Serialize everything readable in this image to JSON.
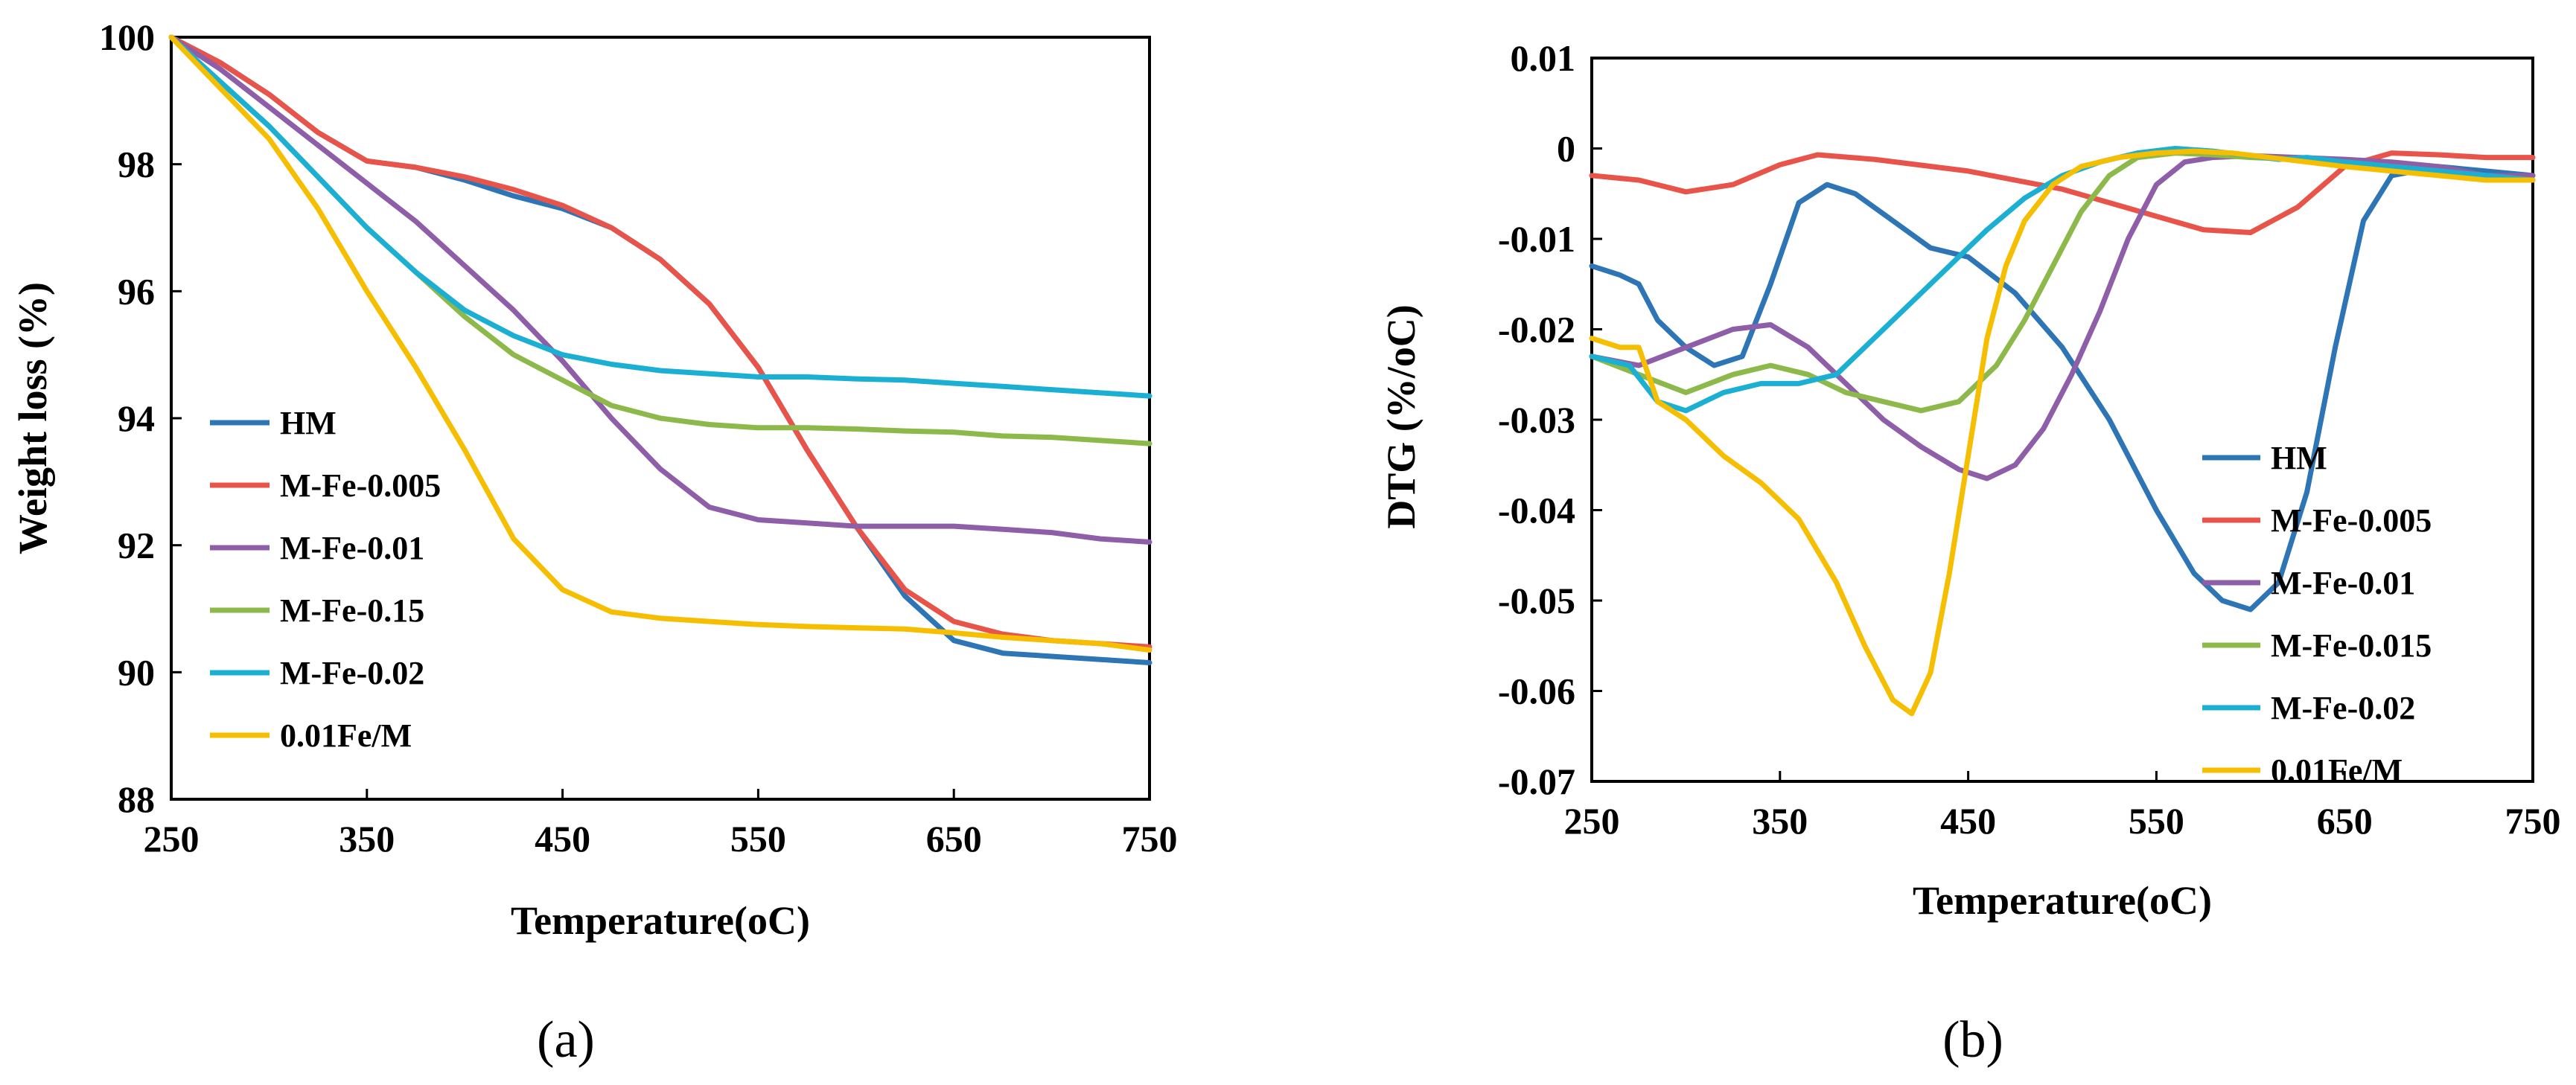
{
  "chart_data": [
    {
      "type": "line",
      "panel_label": "(a)",
      "xlabel": "Temperature(oC)",
      "ylabel": "Weight loss (%)",
      "xlim": [
        250,
        750
      ],
      "ylim": [
        88,
        100
      ],
      "xticks": [
        250,
        350,
        450,
        550,
        650,
        750
      ],
      "yticks": [
        88,
        90,
        92,
        94,
        96,
        98,
        100
      ],
      "grid": false,
      "legend_position": "left",
      "series": [
        {
          "name": "HM",
          "color": "#2E75B6",
          "x": [
            250,
            275,
            300,
            325,
            350,
            375,
            400,
            425,
            450,
            475,
            500,
            525,
            550,
            575,
            600,
            625,
            650,
            675,
            700,
            725,
            750
          ],
          "y": [
            100,
            99.6,
            99.1,
            98.5,
            98.05,
            97.95,
            97.75,
            97.5,
            97.3,
            97.0,
            96.5,
            95.8,
            94.8,
            93.5,
            92.3,
            91.2,
            90.5,
            90.3,
            90.25,
            90.2,
            90.15
          ]
        },
        {
          "name": "M-Fe-0.005",
          "color": "#E8534A",
          "x": [
            250,
            275,
            300,
            325,
            350,
            375,
            400,
            425,
            450,
            475,
            500,
            525,
            550,
            575,
            600,
            625,
            650,
            675,
            700,
            725,
            750
          ],
          "y": [
            100,
            99.6,
            99.1,
            98.5,
            98.05,
            97.95,
            97.8,
            97.6,
            97.35,
            97.0,
            96.5,
            95.8,
            94.8,
            93.5,
            92.3,
            91.3,
            90.8,
            90.6,
            90.5,
            90.45,
            90.4
          ]
        },
        {
          "name": "M-Fe-0.01",
          "color": "#8E5EA8",
          "x": [
            250,
            275,
            300,
            325,
            350,
            375,
            400,
            425,
            450,
            475,
            500,
            525,
            550,
            575,
            600,
            625,
            650,
            675,
            700,
            725,
            750
          ],
          "y": [
            100,
            99.5,
            98.9,
            98.3,
            97.7,
            97.1,
            96.4,
            95.7,
            94.9,
            94.0,
            93.2,
            92.6,
            92.4,
            92.35,
            92.3,
            92.3,
            92.3,
            92.25,
            92.2,
            92.1,
            92.05
          ]
        },
        {
          "name": "M-Fe-0.15",
          "color": "#8DB84A",
          "x": [
            250,
            275,
            300,
            325,
            350,
            375,
            400,
            425,
            450,
            475,
            500,
            525,
            550,
            575,
            600,
            625,
            650,
            675,
            700,
            725,
            750
          ],
          "y": [
            100,
            99.3,
            98.6,
            97.8,
            97.0,
            96.3,
            95.6,
            95.0,
            94.6,
            94.2,
            94.0,
            93.9,
            93.85,
            93.85,
            93.83,
            93.8,
            93.78,
            93.72,
            93.7,
            93.65,
            93.6
          ]
        },
        {
          "name": "M-Fe-0.02",
          "color": "#1BAFD4",
          "x": [
            250,
            275,
            300,
            325,
            350,
            375,
            400,
            425,
            450,
            475,
            500,
            525,
            550,
            575,
            600,
            625,
            650,
            675,
            700,
            725,
            750
          ],
          "y": [
            100,
            99.3,
            98.6,
            97.8,
            97.0,
            96.3,
            95.7,
            95.3,
            95.0,
            94.85,
            94.75,
            94.7,
            94.65,
            94.65,
            94.62,
            94.6,
            94.55,
            94.5,
            94.45,
            94.4,
            94.35
          ]
        },
        {
          "name": "0.01Fe/M",
          "color": "#F6BE00",
          "x": [
            250,
            275,
            300,
            325,
            350,
            375,
            400,
            425,
            450,
            475,
            500,
            525,
            550,
            575,
            600,
            625,
            650,
            675,
            700,
            725,
            750
          ],
          "y": [
            100,
            99.2,
            98.4,
            97.3,
            96.0,
            94.8,
            93.5,
            92.1,
            91.3,
            90.95,
            90.85,
            90.8,
            90.75,
            90.72,
            90.7,
            90.68,
            90.62,
            90.55,
            90.5,
            90.45,
            90.35
          ]
        }
      ]
    },
    {
      "type": "line",
      "panel_label": "(b)",
      "xlabel": "Temperature(oC)",
      "ylabel": "DTG (%/oC)",
      "xlim": [
        250,
        750
      ],
      "ylim": [
        -0.07,
        0.01
      ],
      "xticks": [
        250,
        350,
        450,
        550,
        650,
        750
      ],
      "yticks": [
        0.01,
        0,
        -0.01,
        -0.02,
        -0.03,
        -0.04,
        -0.05,
        -0.06,
        -0.07
      ],
      "ytick_labels": [
        "0.01",
        "0",
        "-0.01",
        "-0.02",
        "-0.03",
        "-0.04",
        "-0.05",
        "-0.06",
        "-0.07"
      ],
      "grid": false,
      "legend_position": "bottom-right",
      "series": [
        {
          "name": "HM",
          "color": "#2E75B6",
          "x": [
            250,
            265,
            275,
            285,
            300,
            315,
            330,
            345,
            360,
            375,
            390,
            410,
            430,
            450,
            475,
            500,
            525,
            550,
            570,
            585,
            600,
            615,
            630,
            645,
            660,
            675,
            700,
            725,
            750
          ],
          "y": [
            -0.013,
            -0.014,
            -0.015,
            -0.019,
            -0.022,
            -0.024,
            -0.023,
            -0.015,
            -0.006,
            -0.004,
            -0.005,
            -0.008,
            -0.011,
            -0.012,
            -0.016,
            -0.022,
            -0.03,
            -0.04,
            -0.047,
            -0.05,
            -0.051,
            -0.048,
            -0.038,
            -0.022,
            -0.008,
            -0.003,
            -0.002,
            -0.0025,
            -0.003
          ]
        },
        {
          "name": "M-Fe-0.005",
          "color": "#E8534A",
          "x": [
            250,
            275,
            300,
            325,
            350,
            370,
            400,
            450,
            500,
            550,
            575,
            600,
            625,
            650,
            675,
            700,
            725,
            750
          ],
          "y": [
            -0.003,
            -0.0035,
            -0.0048,
            -0.004,
            -0.0018,
            -0.0007,
            -0.0012,
            -0.0025,
            -0.0045,
            -0.0075,
            -0.009,
            -0.0093,
            -0.0065,
            -0.002,
            -0.0005,
            -0.0007,
            -0.001,
            -0.001
          ]
        },
        {
          "name": "M-Fe-0.01",
          "color": "#8E5EA8",
          "x": [
            250,
            275,
            300,
            325,
            345,
            365,
            385,
            405,
            425,
            445,
            460,
            475,
            490,
            505,
            520,
            535,
            550,
            565,
            580,
            600,
            625,
            650,
            675,
            700,
            725,
            750
          ],
          "y": [
            -0.023,
            -0.024,
            -0.022,
            -0.02,
            -0.0195,
            -0.022,
            -0.026,
            -0.03,
            -0.033,
            -0.0355,
            -0.0365,
            -0.035,
            -0.031,
            -0.025,
            -0.018,
            -0.01,
            -0.004,
            -0.0015,
            -0.001,
            -0.0008,
            -0.001,
            -0.0012,
            -0.0015,
            -0.002,
            -0.003,
            -0.003
          ]
        },
        {
          "name": "M-Fe-0.015",
          "color": "#8DB84A",
          "x": [
            250,
            275,
            300,
            325,
            345,
            365,
            385,
            405,
            425,
            445,
            465,
            480,
            495,
            510,
            525,
            540,
            560,
            580,
            600,
            625,
            650,
            675,
            700,
            725,
            750
          ],
          "y": [
            -0.023,
            -0.025,
            -0.027,
            -0.025,
            -0.024,
            -0.025,
            -0.027,
            -0.028,
            -0.029,
            -0.028,
            -0.024,
            -0.019,
            -0.013,
            -0.007,
            -0.003,
            -0.001,
            -0.0005,
            -0.0007,
            -0.001,
            -0.0012,
            -0.0015,
            -0.002,
            -0.0025,
            -0.003,
            -0.0035
          ]
        },
        {
          "name": "M-Fe-0.02",
          "color": "#1BAFD4",
          "x": [
            250,
            270,
            285,
            300,
            320,
            340,
            360,
            380,
            400,
            420,
            440,
            460,
            480,
            500,
            520,
            540,
            560,
            580,
            600,
            615,
            630,
            650,
            675,
            700,
            725,
            750
          ],
          "y": [
            -0.023,
            -0.024,
            -0.028,
            -0.029,
            -0.027,
            -0.026,
            -0.026,
            -0.025,
            -0.021,
            -0.017,
            -0.013,
            -0.009,
            -0.0055,
            -0.003,
            -0.0015,
            -0.0005,
            0,
            -0.0003,
            -0.0008,
            -0.0012,
            -0.001,
            -0.0015,
            -0.002,
            -0.0025,
            -0.003,
            -0.0035
          ]
        },
        {
          "name": "0.01Fe/M",
          "color": "#F6BE00",
          "x": [
            250,
            265,
            275,
            285,
            300,
            320,
            340,
            360,
            380,
            395,
            410,
            420,
            430,
            440,
            450,
            460,
            470,
            480,
            495,
            510,
            530,
            550,
            570,
            590,
            610,
            630,
            650,
            675,
            700,
            725,
            750
          ],
          "y": [
            -0.021,
            -0.022,
            -0.022,
            -0.028,
            -0.03,
            -0.034,
            -0.037,
            -0.041,
            -0.048,
            -0.055,
            -0.061,
            -0.0625,
            -0.058,
            -0.047,
            -0.034,
            -0.021,
            -0.013,
            -0.008,
            -0.004,
            -0.002,
            -0.001,
            -0.0005,
            -0.0003,
            -0.0005,
            -0.001,
            -0.0015,
            -0.002,
            -0.0025,
            -0.003,
            -0.0035,
            -0.0035
          ]
        }
      ]
    }
  ]
}
